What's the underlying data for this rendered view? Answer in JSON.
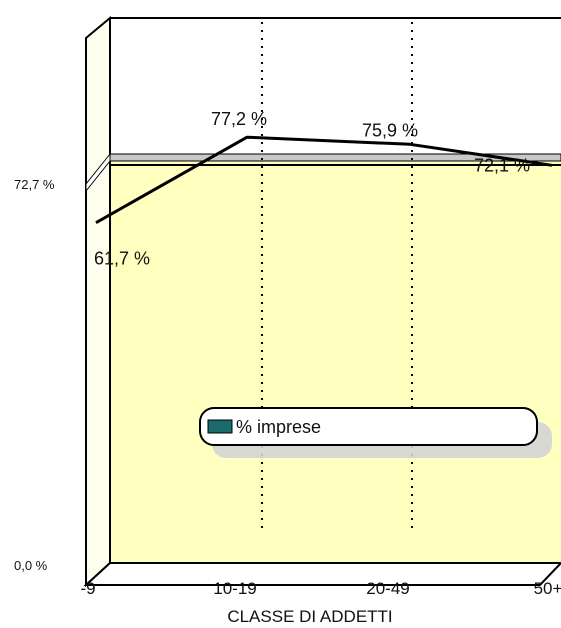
{
  "chart_data": {
    "type": "line",
    "categories": [
      "-9",
      "10-19",
      "20-49",
      "50+"
    ],
    "series": [
      {
        "name": "% imprese",
        "values": [
          61.7,
          77.2,
          75.9,
          72.1
        ]
      }
    ],
    "value_labels": [
      "61,7 %",
      "77,2 %",
      "75,9 %",
      "72,1 %"
    ],
    "reference_line": {
      "value": 72.7,
      "label": "72,7 %"
    },
    "axis_min_label": "0,0 %",
    "xlabel": "CLASSE DI ADDETTI",
    "ylabel": "",
    "ylim": [
      0,
      100
    ],
    "grid": "vertical dotted",
    "legend_position": "bottom-center",
    "colors": {
      "wall": "#ffffc0",
      "line": "#000000",
      "legend_swatch": "#1a6b6b",
      "band": "#c8c8c8"
    }
  }
}
